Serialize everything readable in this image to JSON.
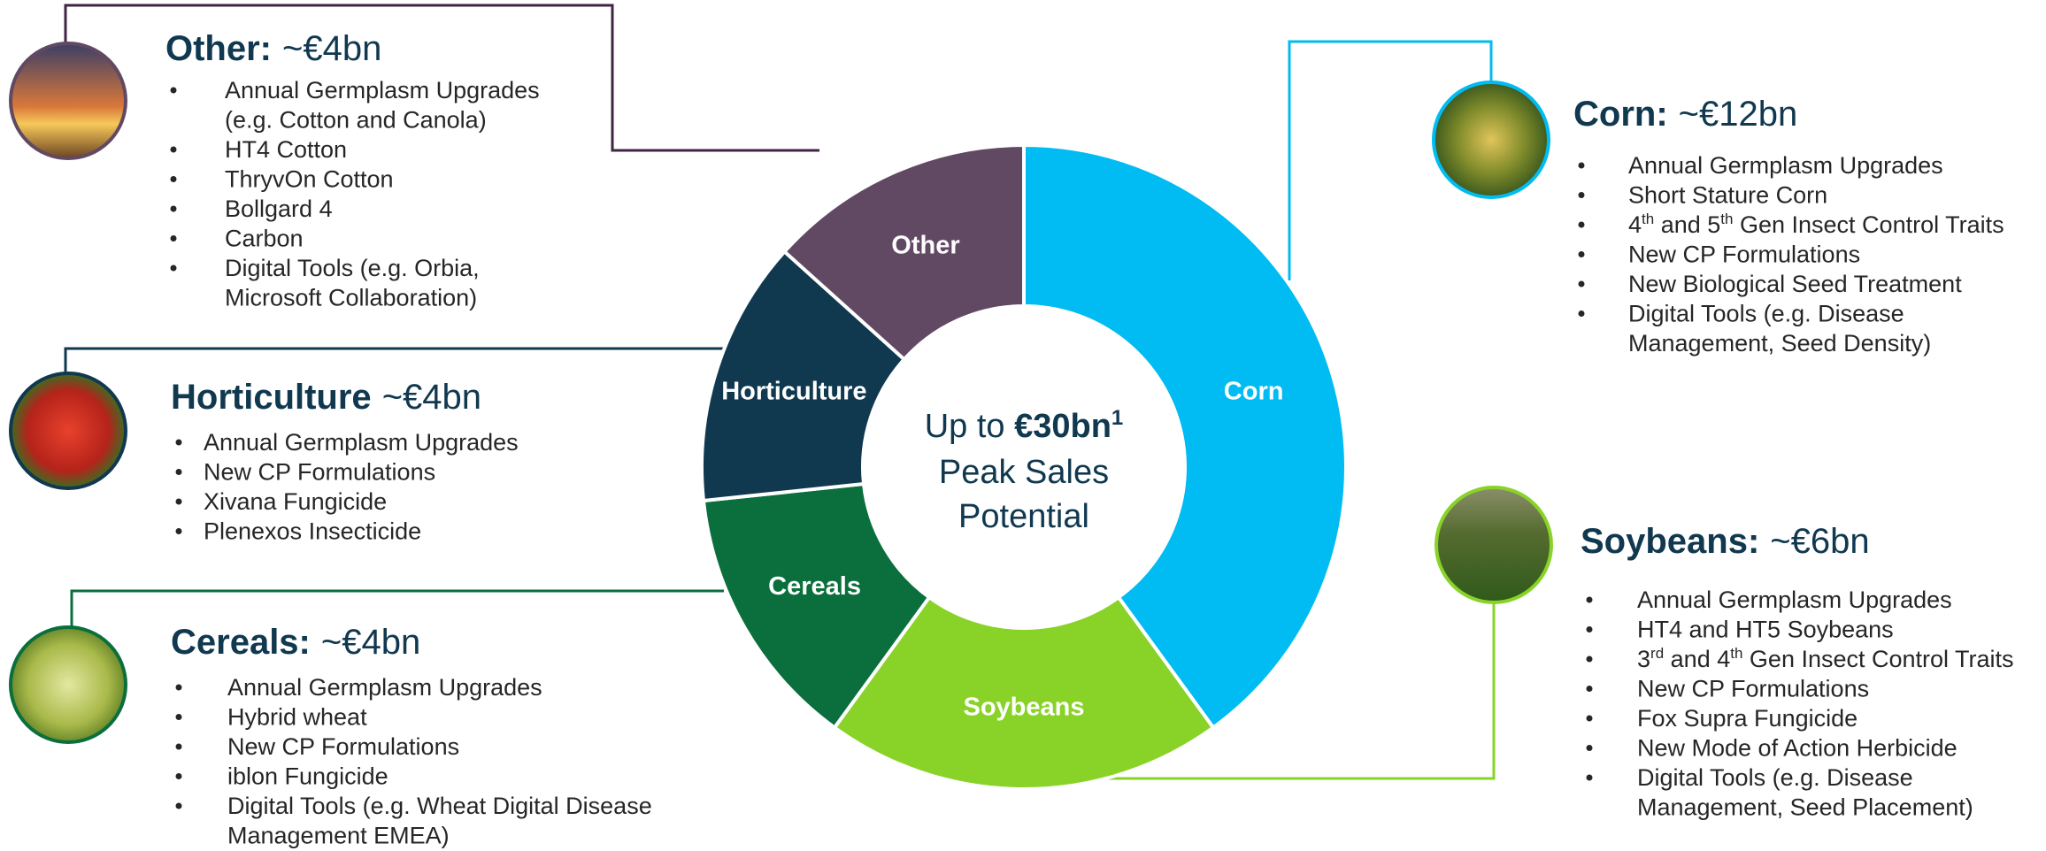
{
  "chart_data": {
    "type": "pie",
    "donut": true,
    "categories": [
      "Corn",
      "Soybeans",
      "Cereals",
      "Horticulture",
      "Other"
    ],
    "values": [
      12,
      6,
      4,
      4,
      4
    ],
    "value_labels": [
      "~€12bn",
      "~€6bn",
      "~€4bn",
      "~€4bn",
      "~€4bn"
    ],
    "colors": [
      "#00bcf2",
      "#89d329",
      "#0a6f3c",
      "#10384f",
      "#624963"
    ],
    "center": {
      "prefix": "Up to ",
      "bold": "€30bn",
      "sup": "1",
      "lines": [
        "Peak Sales",
        "Potential"
      ]
    },
    "details": [
      {
        "heading": "Corn:",
        "items": [
          "Annual Germplasm Upgrades",
          "Short Stature Corn",
          {
            "runs": [
              "4",
              {
                "sup": "th"
              },
              " and 5",
              {
                "sup": "th"
              },
              " Gen Insect Control Traits"
            ]
          },
          "New CP Formulations",
          "New Biological Seed Treatment",
          [
            "Digital Tools (e.g. Disease",
            "Management, Seed Density)"
          ]
        ]
      },
      {
        "heading": "Soybeans:",
        "items": [
          "Annual Germplasm Upgrades",
          "HT4 and HT5 Soybeans",
          {
            "runs": [
              "3",
              {
                "sup": "rd"
              },
              " and 4",
              {
                "sup": "th"
              },
              " Gen Insect Control Traits"
            ]
          },
          "New CP Formulations",
          "Fox Supra Fungicide",
          "New Mode of Action Herbicide",
          [
            "Digital Tools (e.g. Disease",
            "Management, Seed Placement)"
          ]
        ]
      },
      {
        "heading": "Cereals:",
        "items": [
          "Annual Germplasm Upgrades",
          "Hybrid wheat",
          "New CP Formulations",
          "iblon Fungicide",
          [
            "Digital Tools (e.g. Wheat Digital Disease",
            "Management EMEA)"
          ]
        ]
      },
      {
        "heading": "Horticulture",
        "items": [
          "Annual Germplasm Upgrades",
          "New CP Formulations",
          "Xivana  Fungicide",
          "Plenexos Insecticide"
        ]
      },
      {
        "heading": "Other:",
        "items": [
          [
            "Annual Germplasm Upgrades",
            "(e.g. Cotton and Canola)"
          ],
          "HT4 Cotton",
          "ThryvOn  Cotton",
          "Bollgard 4",
          "Carbon",
          [
            "Digital Tools (e.g. Orbia,",
            "Microsoft Collaboration)"
          ]
        ]
      }
    ]
  }
}
